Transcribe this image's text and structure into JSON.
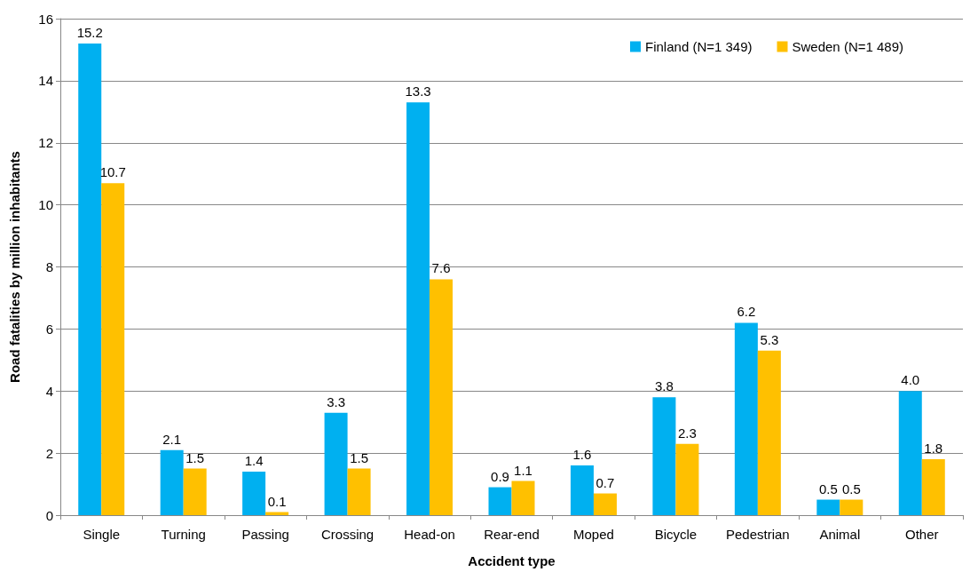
{
  "chart_data": {
    "type": "bar",
    "xlabel": "Accident type",
    "ylabel": "Road fatalities by million inhabitants",
    "categories": [
      "Single",
      "Turning",
      "Passing",
      "Crossing",
      "Head-on",
      "Rear-end",
      "Moped",
      "Bicycle",
      "Pedestrian",
      "Animal",
      "Other"
    ],
    "series": [
      {
        "name": "Finland (N=1 349)",
        "color": "#00b0f0",
        "values": [
          15.2,
          2.1,
          1.4,
          3.3,
          13.3,
          0.9,
          1.6,
          3.8,
          6.2,
          0.5,
          4.0
        ],
        "value_labels": [
          "15.2",
          "2.1",
          "1.4",
          "3.3",
          "13.3",
          "0.9",
          "1.6",
          "3.8",
          "6.2",
          "0.5",
          "4.0"
        ]
      },
      {
        "name": "Sweden (N=1 489)",
        "color": "#ffc000",
        "values": [
          10.7,
          1.5,
          0.1,
          1.5,
          7.6,
          1.1,
          0.7,
          2.3,
          5.3,
          0.5,
          1.8
        ],
        "value_labels": [
          "10.7",
          "1.5",
          "0.1",
          "1.5",
          "7.6",
          "1.1",
          "0.7",
          "2.3",
          "5.3",
          "0.5",
          "1.8"
        ]
      }
    ],
    "ylim": [
      0,
      16
    ],
    "yticks": [
      0,
      2,
      4,
      6,
      8,
      10,
      12,
      14,
      16
    ],
    "grid": "y",
    "legend": "top right"
  }
}
